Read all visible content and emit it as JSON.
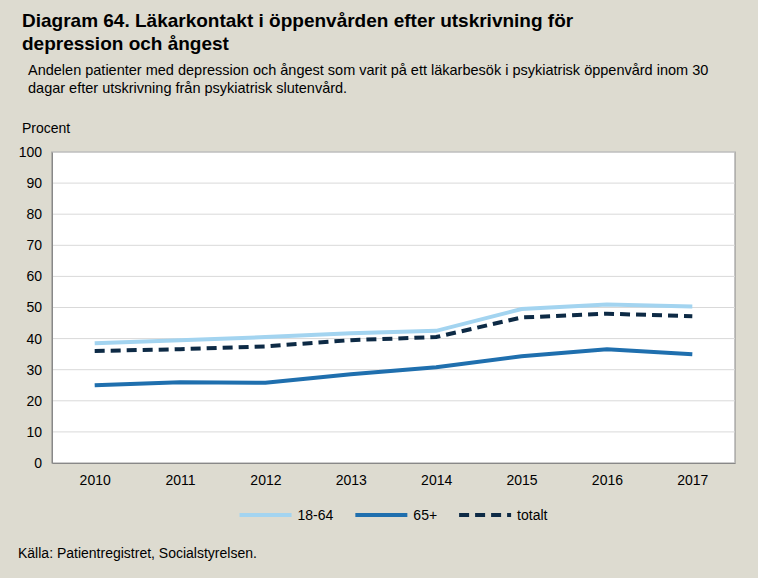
{
  "chart_data": {
    "type": "line",
    "title": "Diagram 64. Läkarkontakt i öppenvården efter utskrivning för depression och ångest",
    "subtitle": "Andelen patienter med depression och ångest som varit på ett läkarbesök i psykiatrisk öppenvård inom 30 dagar efter utskrivning från psykiatrisk slutenvård.",
    "y_label": "Procent",
    "source": "Källa: Patientregistret, Socialstyrelsen.",
    "categories": [
      "2010",
      "2011",
      "2012",
      "2013",
      "2014",
      "2015",
      "2016",
      "2017"
    ],
    "series": [
      {
        "name": "18-64",
        "color": "#a3d4f0",
        "line_style": "solid",
        "values": [
          38.5,
          39.5,
          40.5,
          41.7,
          42.5,
          49.5,
          51,
          50.3
        ]
      },
      {
        "name": "65+",
        "color": "#1f6fae",
        "line_style": "solid",
        "values": [
          25,
          26,
          25.8,
          28.5,
          30.8,
          34.3,
          36.6,
          35
        ]
      },
      {
        "name": "totalt",
        "color": "#0d2a45",
        "line_style": "dashed",
        "values": [
          36,
          36.6,
          37.5,
          39.5,
          40.5,
          46.8,
          48,
          47.2
        ]
      }
    ],
    "ylim": [
      0,
      100
    ],
    "yticks": [
      0,
      10,
      20,
      30,
      40,
      50,
      60,
      70,
      80,
      90,
      100
    ],
    "grid": true,
    "legend": "bottom"
  }
}
